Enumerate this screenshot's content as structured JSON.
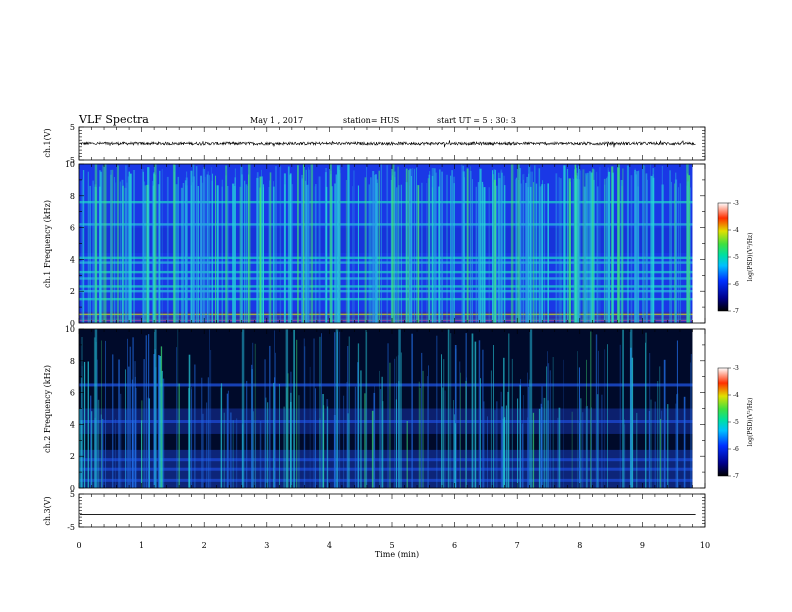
{
  "header": {
    "title": "VLF Spectra",
    "date": "May 1 , 2017",
    "station": "station= HUS",
    "start": "start UT = 5 : 30: 3"
  },
  "chart_data": [
    {
      "type": "line",
      "panel": "ch1-waveform",
      "ylabel": "ch.1(V)",
      "ylim": [
        -5,
        5
      ],
      "yticks": [
        5,
        -5
      ],
      "xlim": [
        0,
        10
      ],
      "series": [
        {
          "values_description": "noise around 0",
          "level": 0.0,
          "amplitude": 0.4
        }
      ]
    },
    {
      "type": "heatmap",
      "panel": "ch1-spectrogram",
      "ylabel": "ch.1 Frequency (kHz)",
      "ylim": [
        0,
        10
      ],
      "yticks": [
        0,
        2,
        4,
        6,
        8,
        10
      ],
      "xlim": [
        0,
        9.8
      ],
      "colorbar": {
        "label": "log(PSD)(V²/Hz)",
        "ticks": [
          "-3",
          "-4",
          "-5",
          "-6",
          "-7"
        ],
        "range": [
          -7,
          -3
        ]
      },
      "horizontal_bands_khz": [
        0.2,
        0.5,
        1.5,
        2.0,
        2.3,
        2.8,
        3.2,
        3.8,
        4.1,
        6.2,
        7.6
      ]
    },
    {
      "type": "heatmap",
      "panel": "ch2-spectrogram",
      "ylabel": "ch.2 Frequency (kHz)",
      "ylim": [
        0,
        10
      ],
      "yticks": [
        0,
        2,
        4,
        6,
        8,
        10
      ],
      "xlim": [
        0,
        9.8
      ],
      "colorbar": {
        "label": "log(PSD)(V²/Hz)",
        "ticks": [
          "-3",
          "-4",
          "-5",
          "-6",
          "-7"
        ],
        "range": [
          -7,
          -3
        ]
      },
      "horizontal_bands_khz": [
        0.5,
        1.2,
        1.8,
        4.2,
        6.5
      ]
    },
    {
      "type": "line",
      "panel": "ch3-waveform",
      "ylabel": "ch.3(V)",
      "ylim": [
        -5,
        5
      ],
      "yticks": [
        5,
        -5
      ],
      "xlim": [
        0,
        10
      ],
      "series": [
        {
          "level": -1.2
        }
      ]
    }
  ],
  "xaxis": {
    "label": "Time (min)",
    "ticks": [
      "0",
      "1",
      "2",
      "3",
      "4",
      "5",
      "6",
      "7",
      "8",
      "9",
      "10"
    ],
    "range": [
      0,
      10
    ]
  },
  "colors": {
    "ch1_background": "#1a38e6",
    "ch2_background": "#000a2a",
    "stripe_cyan": "#24d8d8",
    "stripe_green": "#3ee87a"
  }
}
